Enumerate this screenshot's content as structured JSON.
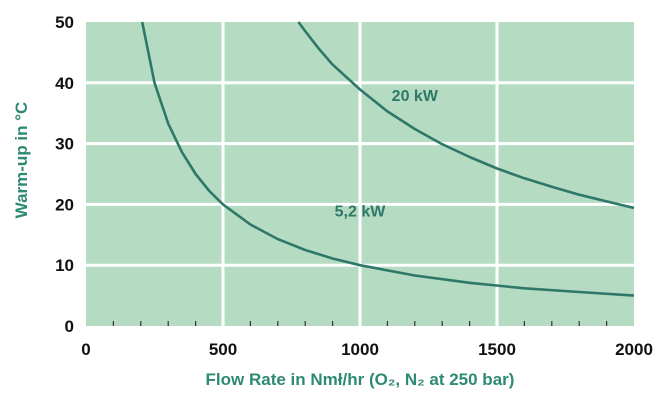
{
  "colors": {
    "plot_background": "#b5dcc3",
    "grid": "#ffffff",
    "curve": "#2e7868",
    "axis_label": "#2e8a73",
    "tick_text": "#111111"
  },
  "chart_data": {
    "type": "line",
    "title": "",
    "xlabel": "Flow Rate in Nmł/hr (O₂, N₂ at 250 bar)",
    "ylabel": "Warm-up in °C",
    "xlim": [
      0,
      2000
    ],
    "ylim": [
      0,
      50
    ],
    "x_ticks": [
      "0",
      "500",
      "1000",
      "1500",
      "2000"
    ],
    "y_ticks": [
      "0",
      "10",
      "20",
      "30",
      "40",
      "50"
    ],
    "grid": true,
    "series": [
      {
        "name": "5,2 kW",
        "x": [
          205,
          250,
          300,
          350,
          400,
          450,
          500,
          600,
          700,
          800,
          900,
          1000,
          1200,
          1400,
          1600,
          1800,
          2000
        ],
        "y": [
          50,
          40,
          33.3,
          28.6,
          25,
          22.2,
          20,
          16.7,
          14.3,
          12.5,
          11.1,
          10,
          8.3,
          7.1,
          6.2,
          5.6,
          5
        ]
      },
      {
        "name": "20 kW",
        "x": [
          775,
          800,
          850,
          900,
          1000,
          1100,
          1200,
          1300,
          1400,
          1500,
          1600,
          1700,
          1800,
          1900,
          2000
        ],
        "y": [
          50,
          48.5,
          45.6,
          43,
          38.9,
          35.3,
          32.4,
          29.9,
          27.8,
          25.9,
          24.3,
          22.9,
          21.6,
          20.5,
          19.4
        ]
      }
    ]
  }
}
